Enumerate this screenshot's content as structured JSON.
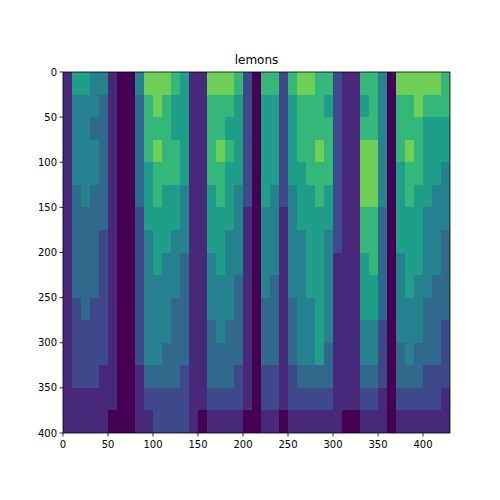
{
  "chart_data": {
    "type": "heatmap",
    "title": "lemons",
    "color": "viridis",
    "xlim": [
      0,
      430
    ],
    "ylim": [
      400,
      0
    ],
    "xticks": [
      0,
      50,
      100,
      150,
      200,
      250,
      300,
      350,
      400
    ],
    "yticks": [
      0,
      50,
      100,
      150,
      200,
      250,
      300,
      350,
      400
    ],
    "zlim": [
      0,
      9
    ],
    "x_edges": [
      0,
      10,
      20,
      30,
      40,
      50,
      60,
      70,
      80,
      90,
      100,
      110,
      120,
      130,
      140,
      150,
      160,
      170,
      180,
      190,
      200,
      210,
      220,
      230,
      240,
      250,
      260,
      270,
      280,
      290,
      300,
      310,
      320,
      330,
      340,
      350,
      360,
      370,
      380,
      390,
      400,
      410,
      420,
      430
    ],
    "y_edges": [
      0,
      25,
      50,
      75,
      100,
      125,
      150,
      175,
      200,
      225,
      250,
      275,
      300,
      325,
      350,
      375,
      400
    ],
    "cells": [
      [
        1,
        5,
        5,
        4,
        4,
        1,
        0,
        0,
        4,
        7,
        7,
        7,
        6,
        5,
        1,
        1,
        7,
        7,
        7,
        6,
        2,
        0,
        6,
        6,
        2,
        6,
        7,
        7,
        6,
        6,
        2,
        1,
        1,
        6,
        6,
        4,
        0,
        7,
        7,
        7,
        7,
        7,
        6
      ],
      [
        1,
        4,
        4,
        4,
        3,
        1,
        0,
        0,
        3,
        6,
        7,
        6,
        5,
        5,
        1,
        1,
        6,
        6,
        6,
        5,
        2,
        0,
        5,
        5,
        2,
        5,
        6,
        6,
        6,
        5,
        2,
        1,
        1,
        5,
        6,
        4,
        0,
        6,
        6,
        7,
        6,
        6,
        6
      ],
      [
        1,
        4,
        4,
        3,
        3,
        1,
        0,
        0,
        3,
        6,
        6,
        6,
        5,
        5,
        1,
        1,
        6,
        6,
        5,
        5,
        2,
        0,
        5,
        5,
        2,
        5,
        6,
        6,
        6,
        6,
        2,
        1,
        1,
        6,
        6,
        4,
        0,
        6,
        6,
        6,
        5,
        5,
        5
      ],
      [
        1,
        4,
        4,
        4,
        3,
        1,
        0,
        0,
        3,
        6,
        7,
        6,
        6,
        5,
        1,
        1,
        6,
        7,
        6,
        5,
        2,
        0,
        5,
        5,
        2,
        5,
        6,
        6,
        7,
        6,
        2,
        1,
        1,
        7,
        7,
        4,
        0,
        6,
        7,
        6,
        5,
        5,
        5
      ],
      [
        1,
        4,
        4,
        4,
        3,
        1,
        0,
        0,
        3,
        5,
        6,
        6,
        6,
        5,
        1,
        1,
        6,
        6,
        5,
        5,
        2,
        0,
        5,
        5,
        2,
        5,
        5,
        6,
        6,
        6,
        2,
        1,
        1,
        7,
        7,
        4,
        0,
        5,
        6,
        6,
        5,
        5,
        4
      ],
      [
        1,
        3,
        4,
        3,
        3,
        1,
        0,
        0,
        3,
        5,
        6,
        5,
        5,
        4,
        1,
        1,
        5,
        6,
        5,
        4,
        2,
        0,
        5,
        4,
        2,
        4,
        5,
        5,
        6,
        5,
        2,
        1,
        1,
        7,
        7,
        4,
        0,
        5,
        6,
        5,
        5,
        4,
        4
      ],
      [
        1,
        3,
        3,
        3,
        3,
        1,
        0,
        0,
        2,
        5,
        5,
        5,
        5,
        4,
        1,
        1,
        5,
        5,
        5,
        4,
        1,
        0,
        4,
        4,
        1,
        4,
        5,
        5,
        5,
        5,
        2,
        1,
        1,
        6,
        6,
        3,
        0,
        5,
        5,
        5,
        4,
        4,
        4
      ],
      [
        1,
        3,
        3,
        3,
        2,
        1,
        0,
        0,
        2,
        4,
        5,
        5,
        4,
        4,
        1,
        1,
        5,
        5,
        4,
        4,
        1,
        0,
        4,
        4,
        1,
        4,
        4,
        5,
        5,
        4,
        2,
        1,
        1,
        6,
        6,
        3,
        0,
        5,
        5,
        5,
        4,
        4,
        3
      ],
      [
        1,
        3,
        3,
        3,
        2,
        1,
        0,
        0,
        2,
        4,
        5,
        4,
        4,
        3,
        1,
        1,
        4,
        5,
        4,
        4,
        1,
        0,
        4,
        4,
        1,
        4,
        4,
        5,
        5,
        4,
        1,
        1,
        1,
        5,
        6,
        3,
        0,
        4,
        5,
        5,
        4,
        4,
        3
      ],
      [
        1,
        3,
        3,
        3,
        2,
        1,
        0,
        0,
        2,
        4,
        4,
        4,
        4,
        3,
        1,
        1,
        4,
        4,
        4,
        3,
        1,
        0,
        4,
        3,
        1,
        4,
        4,
        5,
        5,
        4,
        1,
        1,
        1,
        5,
        5,
        3,
        0,
        4,
        5,
        4,
        4,
        3,
        3
      ],
      [
        1,
        2,
        3,
        2,
        2,
        1,
        0,
        0,
        2,
        4,
        4,
        4,
        3,
        3,
        1,
        1,
        4,
        4,
        4,
        3,
        1,
        0,
        3,
        3,
        1,
        3,
        4,
        4,
        5,
        4,
        1,
        1,
        1,
        5,
        5,
        3,
        0,
        4,
        4,
        4,
        3,
        3,
        3
      ],
      [
        1,
        2,
        2,
        2,
        2,
        1,
        0,
        0,
        2,
        4,
        4,
        4,
        3,
        3,
        1,
        1,
        3,
        4,
        3,
        3,
        1,
        0,
        3,
        3,
        1,
        3,
        4,
        4,
        5,
        4,
        1,
        1,
        1,
        4,
        4,
        2,
        0,
        4,
        4,
        4,
        3,
        3,
        2
      ],
      [
        1,
        2,
        2,
        2,
        2,
        1,
        0,
        0,
        2,
        4,
        4,
        3,
        3,
        3,
        1,
        1,
        3,
        3,
        3,
        3,
        1,
        0,
        3,
        3,
        1,
        3,
        4,
        4,
        5,
        3,
        1,
        1,
        1,
        4,
        4,
        2,
        0,
        3,
        4,
        3,
        3,
        3,
        2
      ],
      [
        1,
        2,
        2,
        2,
        1,
        1,
        0,
        0,
        1,
        3,
        3,
        3,
        3,
        2,
        1,
        1,
        3,
        3,
        3,
        2,
        1,
        0,
        2,
        2,
        1,
        2,
        3,
        3,
        3,
        3,
        1,
        1,
        1,
        3,
        3,
        2,
        0,
        3,
        3,
        3,
        2,
        2,
        2
      ],
      [
        1,
        1,
        1,
        1,
        1,
        1,
        0,
        0,
        1,
        2,
        2,
        2,
        2,
        2,
        1,
        1,
        2,
        2,
        2,
        2,
        1,
        0,
        2,
        2,
        1,
        2,
        2,
        2,
        2,
        2,
        1,
        1,
        1,
        2,
        2,
        1,
        0,
        2,
        2,
        2,
        2,
        2,
        1
      ],
      [
        1,
        1,
        1,
        1,
        1,
        0,
        0,
        0,
        1,
        1,
        2,
        2,
        2,
        2,
        1,
        0,
        1,
        1,
        1,
        1,
        0,
        0,
        1,
        1,
        0,
        1,
        1,
        1,
        1,
        1,
        1,
        0,
        0,
        1,
        1,
        1,
        0,
        1,
        1,
        1,
        1,
        1,
        1
      ]
    ]
  }
}
